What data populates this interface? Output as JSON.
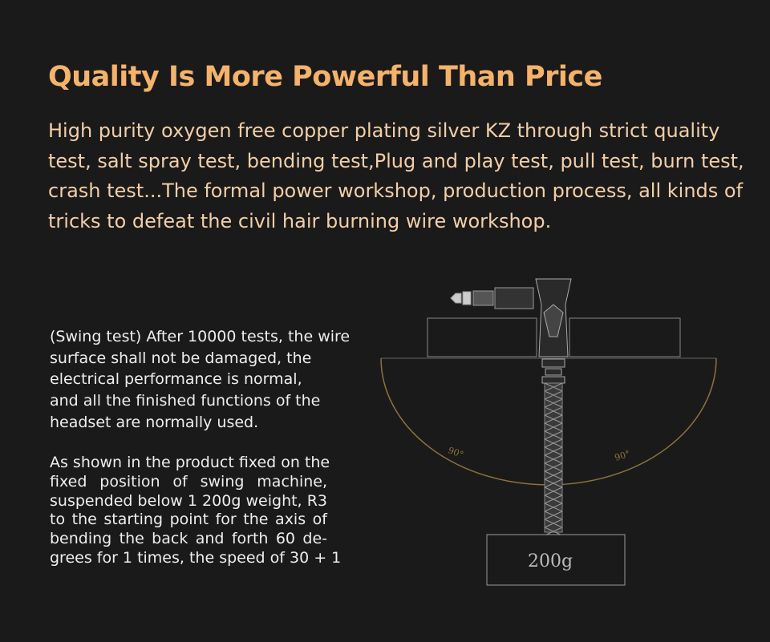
{
  "header": {
    "title": "Quality Is More Powerful Than Price",
    "intro_lines": [
      "High purity oxygen free copper plating silver KZ through strict quality",
      "test, salt spray test, bending test,Plug and play test, pull test, burn test,",
      "crash test...The formal power workshop, production process, all kinds of",
      "tricks to defeat the civil hair burning wire workshop."
    ]
  },
  "swing_test": {
    "paragraph_1": [
      "(Swing test) After 10000 tests, the wire",
      "surface shall not be damaged, the",
      "electrical performance is normal,",
      "and all the finished functions of the",
      "headset are normally used."
    ],
    "paragraph_2": [
      "As shown in the product fixed on the",
      "fixed position of swing machine,",
      "suspended below 1 200g weight, R3",
      "to the starting point for the axis of",
      "bending the back and forth 60 de-",
      "grees for 1 times, the speed of 30 + 1"
    ]
  },
  "diagram": {
    "left_angle": "90°",
    "right_angle": "90°",
    "weight": "200g"
  }
}
